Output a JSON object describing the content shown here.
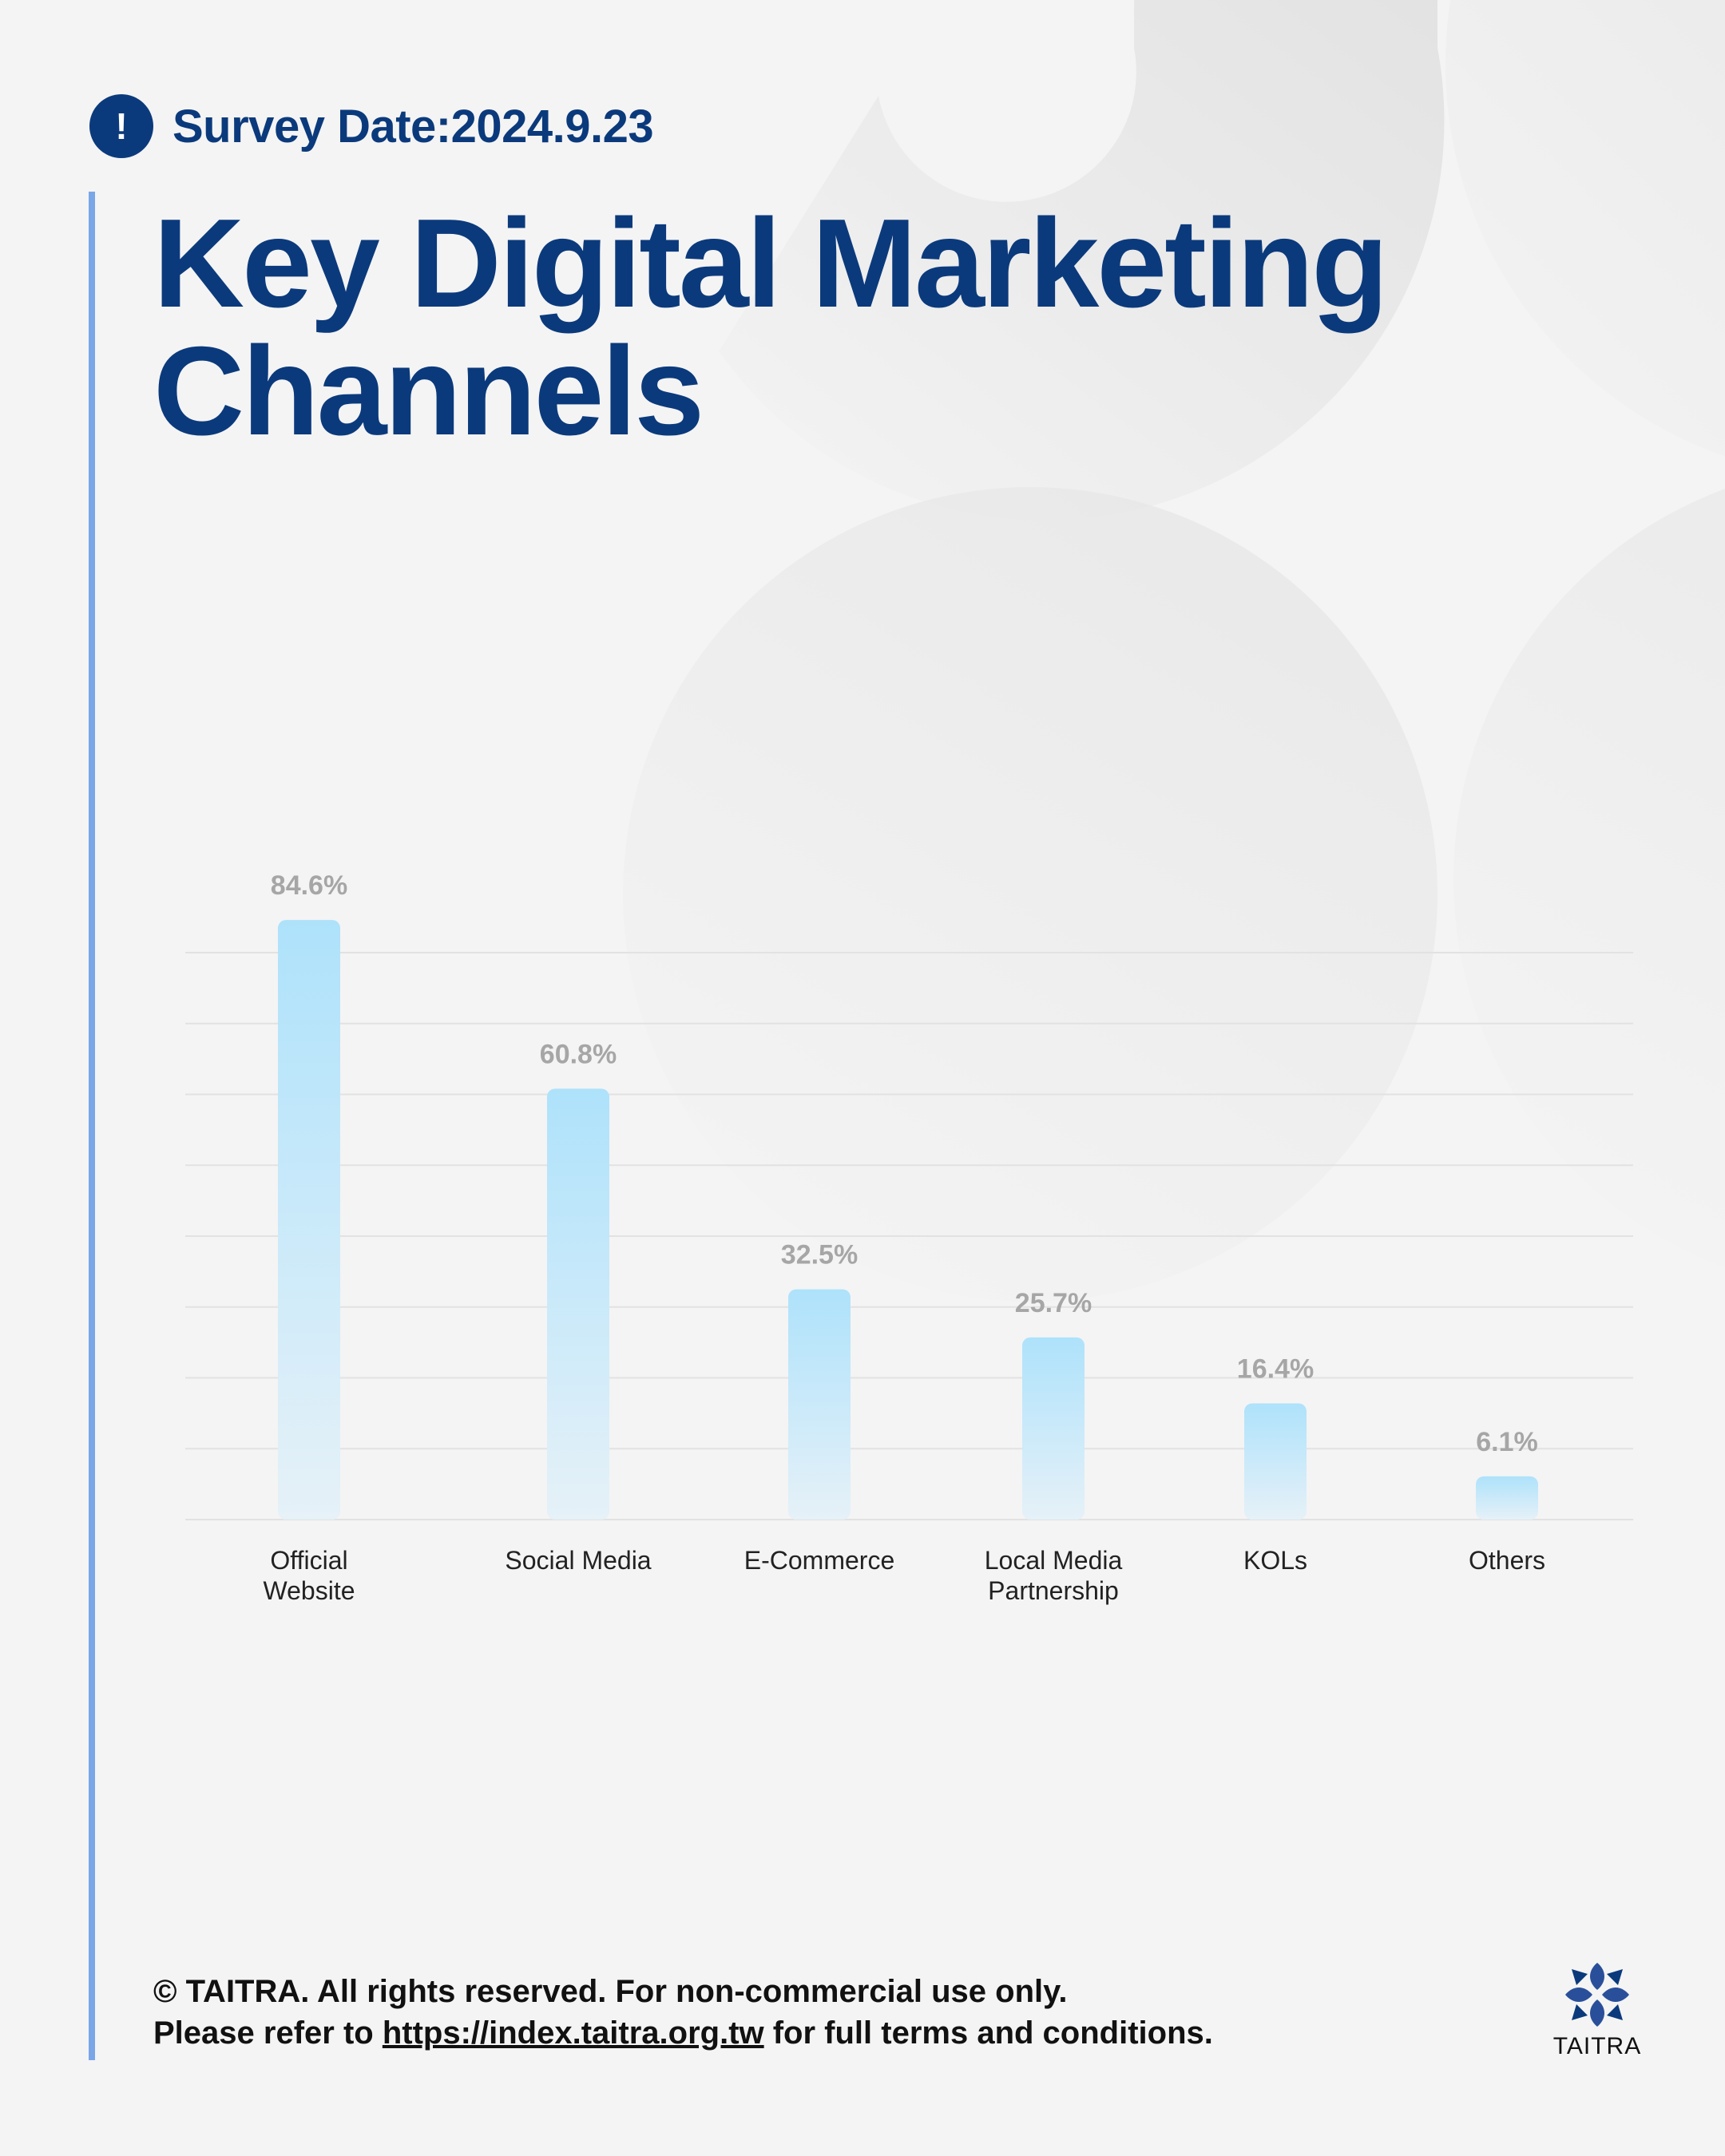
{
  "header": {
    "alert_icon": "exclamation-icon",
    "survey_date": "Survey Date:2024.9.23"
  },
  "title": {
    "line1": "Key Digital Marketing",
    "line2": "Channels"
  },
  "colors": {
    "brand_navy": "#0b3a7c",
    "accent_line": "#7aa6e8",
    "bar_top": "#aee2fb",
    "bar_bottom": "#e6f1f8",
    "value_label": "#a6a6a6",
    "gridline": "#e2e2e2"
  },
  "chart_data": {
    "type": "bar",
    "categories": [
      [
        "Official",
        "Website"
      ],
      [
        "Social Media"
      ],
      [
        "E-Commerce"
      ],
      [
        "Local Media",
        "Partnership"
      ],
      [
        "KOLs"
      ],
      [
        "Others"
      ]
    ],
    "values": [
      84.6,
      60.8,
      32.5,
      25.7,
      16.4,
      6.1
    ],
    "value_labels": [
      "84.6%",
      "60.8%",
      "32.5%",
      "25.7%",
      "16.4%",
      "6.1%"
    ],
    "unit": "%",
    "title": "",
    "xlabel": "",
    "ylabel": "",
    "grid": true,
    "legend": "none"
  },
  "footer": {
    "copyright": "© TAITRA. All rights reserved. For non-commercial use only.",
    "refer_prefix": "Please refer to ",
    "link_text": "https://index.taitra.org.tw",
    "refer_suffix": " for full terms and conditions."
  },
  "logo": {
    "icon": "taitra-logo-icon",
    "text": "TAITRA"
  }
}
